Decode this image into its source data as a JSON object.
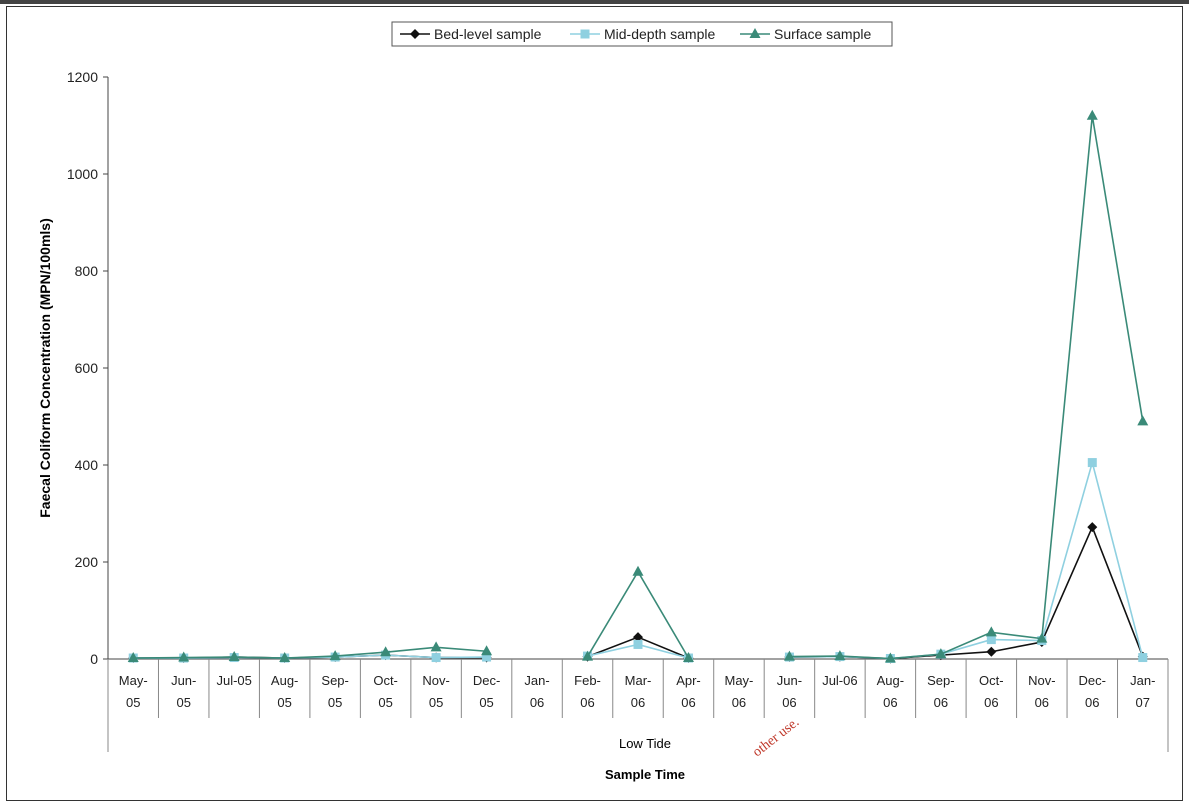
{
  "chart_data": {
    "type": "line",
    "title": "",
    "ylabel": "Faecal Coliform Concentration (MPN/100mls)",
    "xlabel": "Sample Time",
    "x_group_label": "Low Tide",
    "ylim": [
      0,
      1200
    ],
    "yticks": [
      0,
      200,
      400,
      600,
      800,
      1000,
      1200
    ],
    "grid": false,
    "legend_position": "top-center",
    "categories": [
      "May-05",
      "Jun-05",
      "Jul-05",
      "Aug-05",
      "Sep-05",
      "Oct-05",
      "Nov-05",
      "Dec-05",
      "Jan-06",
      "Feb-06",
      "Mar-06",
      "Apr-06",
      "May-06",
      "Jun-06",
      "Jul-06",
      "Aug-06",
      "Sep-06",
      "Oct-06",
      "Nov-06",
      "Dec-06",
      "Jan-07"
    ],
    "category_labels": [
      [
        "May-",
        "05"
      ],
      [
        "Jun-",
        "05"
      ],
      [
        "Jul-05",
        ""
      ],
      [
        "Aug-",
        "05"
      ],
      [
        "Sep-",
        "05"
      ],
      [
        "Oct-",
        "05"
      ],
      [
        "Nov-",
        "05"
      ],
      [
        "Dec-",
        "05"
      ],
      [
        "Jan-",
        "06"
      ],
      [
        "Feb-",
        "06"
      ],
      [
        "Mar-",
        "06"
      ],
      [
        "Apr-",
        "06"
      ],
      [
        "May-",
        "06"
      ],
      [
        "Jun-",
        "06"
      ],
      [
        "Jul-06",
        ""
      ],
      [
        "Aug-",
        "06"
      ],
      [
        "Sep-",
        "06"
      ],
      [
        "Oct-",
        "06"
      ],
      [
        "Nov-",
        "06"
      ],
      [
        "Dec-",
        "06"
      ],
      [
        "Jan-",
        "07"
      ]
    ],
    "series": [
      {
        "name": "Bed-level sample",
        "color": "#111111",
        "marker": "diamond",
        "values": [
          2,
          2,
          4,
          2,
          4,
          8,
          3,
          3,
          null,
          5,
          45,
          2,
          null,
          4,
          5,
          1,
          8,
          15,
          35,
          272,
          5
        ]
      },
      {
        "name": "Mid-depth sample",
        "color": "#8fd0e0",
        "marker": "square",
        "values": [
          2,
          2,
          3,
          2,
          4,
          8,
          3,
          4,
          null,
          6,
          30,
          2,
          null,
          4,
          5,
          1,
          10,
          40,
          38,
          405,
          3
        ]
      },
      {
        "name": "Surface sample",
        "color": "#3a8a78",
        "marker": "triangle",
        "values": [
          2,
          3,
          4,
          2,
          6,
          14,
          24,
          16,
          null,
          5,
          180,
          2,
          null,
          5,
          6,
          1,
          10,
          55,
          42,
          1120,
          490
        ]
      }
    ]
  },
  "watermark_text": "other use."
}
